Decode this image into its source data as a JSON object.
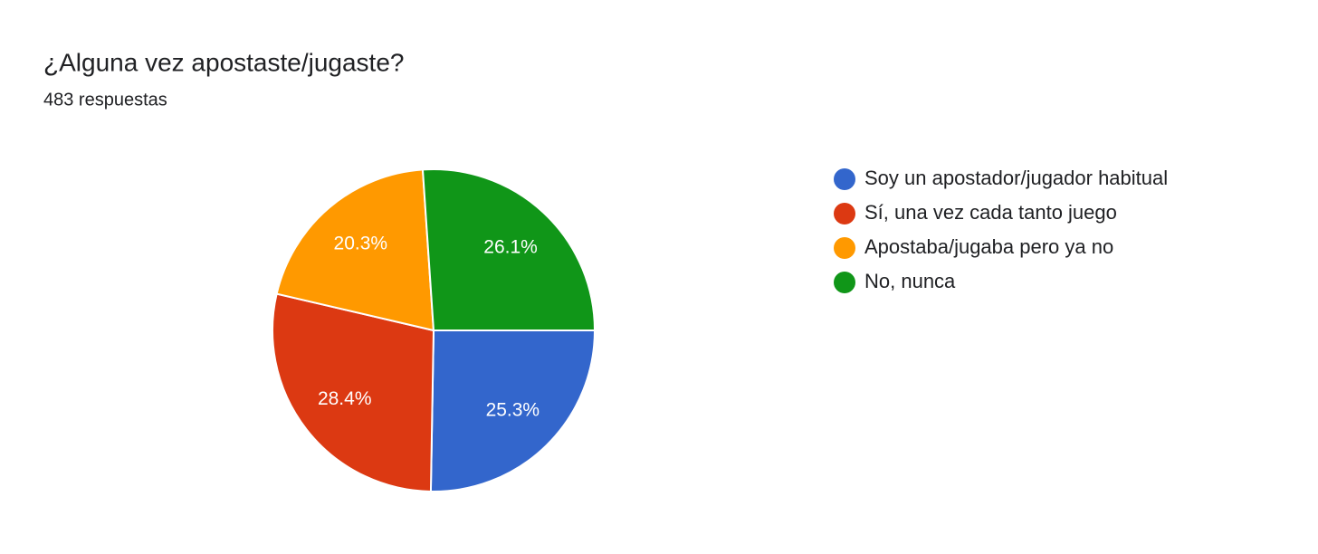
{
  "chart_data": {
    "type": "pie",
    "title": "¿Alguna vez apostaste/jugaste?",
    "subtitle": "483 respuestas",
    "categories": [
      "Soy un apostador/jugador habitual",
      "Sí, una vez cada tanto juego",
      "Apostaba/jugaba pero ya no",
      "No, nunca"
    ],
    "values": [
      25.3,
      28.4,
      20.3,
      26.1
    ],
    "value_labels": [
      "25.3%",
      "28.4%",
      "20.3%",
      "26.1%"
    ],
    "colors": [
      "#3366cc",
      "#dc3912",
      "#ff9900",
      "#109618"
    ],
    "legend": "right"
  }
}
